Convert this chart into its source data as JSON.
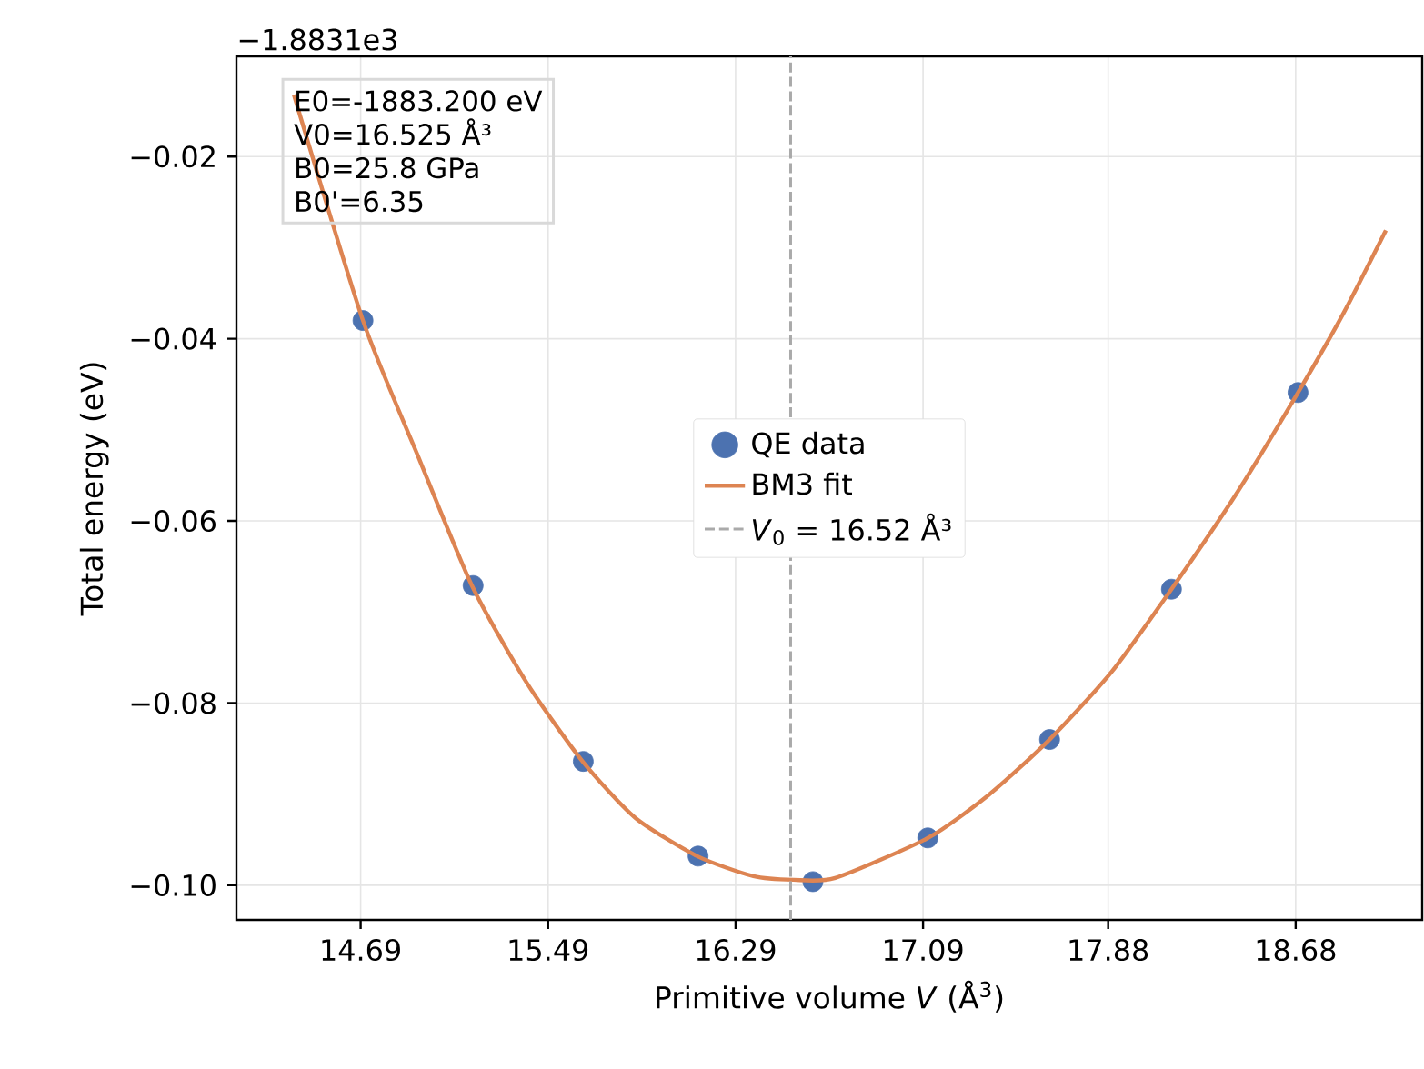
{
  "chart_data": {
    "type": "line",
    "xlabel": "Primitive volume *V* (Å$^{3}$)",
    "ylabel": "Total energy (eV)",
    "xlim": [
      14.16,
      19.22
    ],
    "ylim": [
      -0.1038,
      -0.009
    ],
    "xticks": [
      14.69,
      15.49,
      16.29,
      17.09,
      17.88,
      18.68
    ],
    "yticks": [
      {
        "value": -0.1,
        "label": "−0.10"
      },
      {
        "value": -0.08,
        "label": "−0.08"
      },
      {
        "value": -0.06,
        "label": "−0.06"
      },
      {
        "value": -0.04,
        "label": "−0.04"
      },
      {
        "value": -0.02,
        "label": "−0.02"
      }
    ],
    "grid": true,
    "legend": "center",
    "series": [
      {
        "name": "QE data",
        "type": "scatter",
        "marker": "circle",
        "color": "#4c72b0",
        "x": [
          14.7,
          15.17,
          15.64,
          16.13,
          16.62,
          17.11,
          17.63,
          18.15,
          18.69
        ],
        "values": [
          -0.038,
          -0.0671,
          -0.0864,
          -0.0968,
          -0.0996,
          -0.0948,
          -0.084,
          -0.0675,
          -0.0459
        ]
      },
      {
        "name": "BM3 fit",
        "marker": "none",
        "line_style": "solid",
        "color": "#dd8452",
        "x": [
          14.405,
          14.7,
          14.932,
          15.165,
          15.397,
          15.637,
          15.862,
          16.126,
          16.366,
          16.537,
          16.715,
          17.111,
          17.374,
          17.63,
          17.894,
          18.15,
          18.42,
          18.69,
          18.886,
          19.065
        ],
        "values": [
          -0.0132,
          -0.038,
          -0.0527,
          -0.0671,
          -0.0777,
          -0.0864,
          -0.0926,
          -0.0968,
          -0.099,
          -0.0994,
          -0.0992,
          -0.0948,
          -0.09,
          -0.084,
          -0.0766,
          -0.0675,
          -0.0573,
          -0.0459,
          -0.0371,
          -0.0281
        ]
      }
    ],
    "ref_lines": [
      {
        "axis": "x",
        "value": 16.525,
        "label": "*V*$_{0}$ = 16.52 Å³",
        "color": "#aaaaaa",
        "line_style": "dashed"
      }
    ],
    "annotations": [
      "−1.8831e3",
      "E0=-1883.200 eV",
      "V0=16.525 Å³",
      "B0=25.8 GPa",
      "B0'=6.35"
    ]
  }
}
